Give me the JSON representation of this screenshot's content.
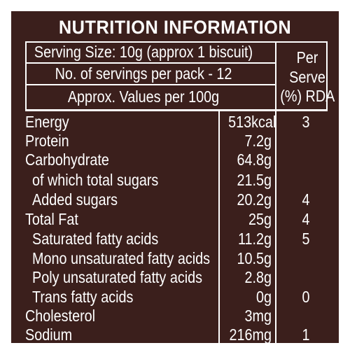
{
  "title": "NUTRITION INFORMATION",
  "header": {
    "serving_size": "Serving Size: 10g (approx 1 biscuit)",
    "servings_per_pack": "No. of servings per pack - 12",
    "values_basis": "Approx. Values per 100g",
    "per_serve": [
      "Per",
      "Serve",
      "(%) RDA"
    ]
  },
  "rows": [
    {
      "name": "Energy",
      "value": "513kcal",
      "rda": "3"
    },
    {
      "name": "Protein",
      "value": "7.2g",
      "rda": ""
    },
    {
      "name": "Carbohydrate",
      "value": "64.8g",
      "rda": ""
    },
    {
      "name": "of which total sugars",
      "value": "21.5g",
      "rda": ""
    },
    {
      "name": "Added sugars",
      "value": "20.2g",
      "rda": "4"
    },
    {
      "name": "Total Fat",
      "value": "25g",
      "rda": "4"
    },
    {
      "name": "Saturated fatty acids",
      "value": "11.2g",
      "rda": "5"
    },
    {
      "name": "Mono unsaturated fatty acids",
      "value": "10.5g",
      "rda": ""
    },
    {
      "name": "Poly unsaturated fatty acids",
      "value": "2.8g",
      "rda": ""
    },
    {
      "name": "Trans fatty acids",
      "value": "0g",
      "rda": "0"
    },
    {
      "name": "Cholesterol",
      "value": "3mg",
      "rda": ""
    },
    {
      "name": "Sodium",
      "value": "216mg",
      "rda": "1"
    }
  ],
  "colors": {
    "background": "#3b1f1c",
    "text": "#ffffff"
  }
}
